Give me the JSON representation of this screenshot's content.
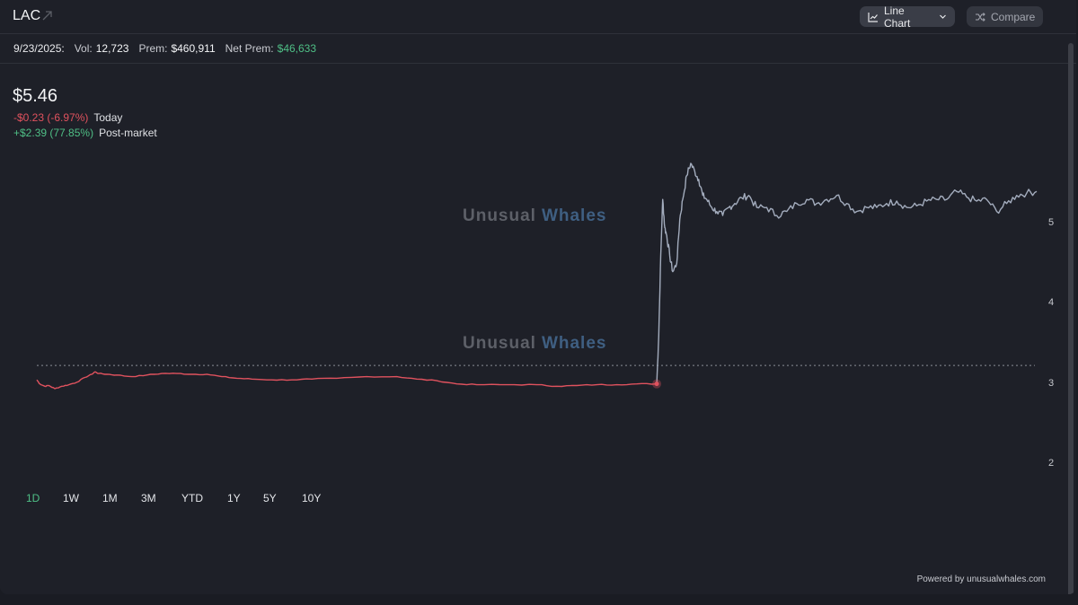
{
  "header": {
    "ticker": "LAC",
    "chart_type_label": "Line Chart",
    "compare_label": "Compare"
  },
  "stats": {
    "date": "9/23/2025:",
    "vol_label": "Vol:",
    "vol_value": "12,723",
    "prem_label": "Prem:",
    "prem_value": "$460,911",
    "net_prem_label": "Net Prem:",
    "net_prem_value": "$46,633"
  },
  "quote": {
    "price": "$5.46",
    "today_change": "-$0.23 (-6.97%)",
    "today_label": "Today",
    "post_change": "+$2.39 (77.85%)",
    "post_label": "Post-market"
  },
  "watermark": {
    "part1": "Unusual",
    "part2": "Whales"
  },
  "timeframes": [
    "1D",
    "1W",
    "1M",
    "3M",
    "YTD",
    "1Y",
    "5Y",
    "10Y"
  ],
  "active_timeframe": "1D",
  "footer": {
    "powered_by": "Powered by unusualwhales.com"
  },
  "colors": {
    "regular_line": "#e0525e",
    "post_line": "#a3acbd",
    "positive": "#4fbf86",
    "negative": "#e0525e"
  },
  "chart_data": {
    "type": "line",
    "ylim": [
      1.9,
      5.95
    ],
    "y_ticks": [
      "2",
      "3",
      "4",
      "5"
    ],
    "y_tick_values": [
      2,
      3,
      4,
      5
    ],
    "reference_line": 3.23,
    "xlim": [
      0,
      1000
    ],
    "series": [
      {
        "session": "regular",
        "x": [
          0,
          3,
          8,
          12,
          18,
          25,
          32,
          40,
          48,
          55,
          58,
          62,
          70,
          80,
          95,
          110,
          125,
          140,
          155,
          170,
          185,
          200,
          215,
          235,
          255,
          275,
          300,
          330,
          360,
          380,
          400,
          420,
          440,
          470,
          500,
          520,
          540,
          560,
          580,
          600,
          620
        ],
        "y": [
          3.05,
          3.0,
          2.97,
          2.98,
          2.94,
          2.97,
          2.99,
          3.02,
          3.08,
          3.12,
          3.15,
          3.13,
          3.12,
          3.11,
          3.09,
          3.11,
          3.13,
          3.13,
          3.12,
          3.12,
          3.09,
          3.07,
          3.06,
          3.05,
          3.05,
          3.06,
          3.07,
          3.09,
          3.09,
          3.06,
          3.04,
          3.0,
          2.99,
          2.99,
          2.99,
          2.97,
          2.98,
          2.99,
          2.99,
          3.0,
          3.0
        ]
      },
      {
        "session": "post",
        "x": [
          620,
          622,
          624,
          626,
          628,
          630,
          633,
          636,
          640,
          643,
          646,
          650,
          654,
          658,
          662,
          666,
          670,
          675,
          680,
          686,
          692,
          698,
          705,
          712,
          720,
          730,
          740,
          750,
          760,
          770,
          780,
          790,
          800,
          810,
          820,
          830,
          840,
          850,
          860,
          870,
          880,
          890,
          900,
          910,
          920,
          930,
          940,
          950,
          960,
          970,
          980,
          990,
          1000
        ],
        "y": [
          3.0,
          3.6,
          4.6,
          5.3,
          4.95,
          4.85,
          4.6,
          4.4,
          4.5,
          5.05,
          5.3,
          5.6,
          5.75,
          5.65,
          5.55,
          5.35,
          5.3,
          5.2,
          5.15,
          5.1,
          5.2,
          5.25,
          5.32,
          5.35,
          5.2,
          5.2,
          5.1,
          5.15,
          5.25,
          5.3,
          5.25,
          5.3,
          5.35,
          5.25,
          5.15,
          5.2,
          5.2,
          5.25,
          5.28,
          5.2,
          5.22,
          5.28,
          5.3,
          5.3,
          5.4,
          5.33,
          5.28,
          5.3,
          5.15,
          5.25,
          5.35,
          5.38,
          5.4
        ]
      }
    ]
  }
}
